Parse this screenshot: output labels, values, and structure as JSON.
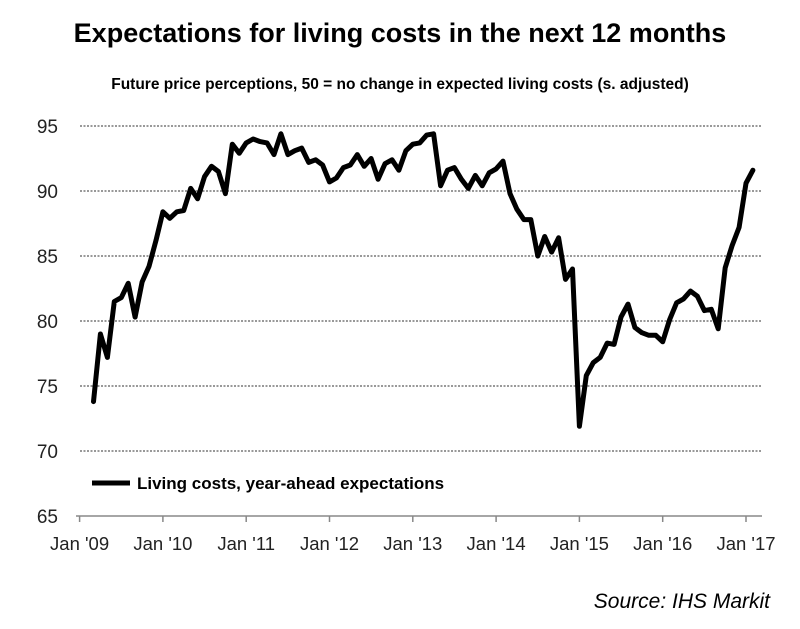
{
  "chart_data": {
    "type": "line",
    "title": "Expectations for living costs in the next 12 months",
    "subtitle": "Future price perceptions, 50 = no change in expected living costs (s. adjusted)",
    "source": "Source: IHS Markit",
    "xlabel": "",
    "ylabel": "",
    "ylim": [
      65,
      95
    ],
    "yticks": [
      65,
      70,
      75,
      80,
      85,
      90,
      95
    ],
    "xticks": [
      "Jan '09",
      "Jan '10",
      "Jan '11",
      "Jan '12",
      "Jan '13",
      "Jan '14",
      "Jan '15",
      "Jan '16",
      "Jan '17"
    ],
    "grid": true,
    "legend_position": "bottom-left",
    "start_month": "2009-03",
    "series": [
      {
        "name": "Living costs, year-ahead expectations",
        "color": "#000000",
        "values": [
          73.8,
          79.0,
          77.2,
          81.5,
          81.8,
          82.9,
          80.3,
          83.0,
          84.2,
          86.2,
          88.4,
          87.9,
          88.4,
          88.5,
          90.2,
          89.4,
          91.1,
          91.9,
          91.5,
          89.8,
          93.6,
          92.9,
          93.7,
          94.0,
          93.8,
          93.7,
          92.8,
          94.4,
          92.8,
          93.1,
          93.3,
          92.2,
          92.4,
          92.0,
          90.7,
          91.0,
          91.8,
          92.0,
          92.8,
          91.9,
          92.5,
          90.9,
          92.1,
          92.4,
          91.6,
          93.1,
          93.6,
          93.7,
          94.3,
          94.4,
          90.4,
          91.6,
          91.8,
          90.9,
          90.2,
          91.2,
          90.4,
          91.4,
          91.7,
          92.3,
          89.8,
          88.6,
          87.8,
          87.8,
          85.0,
          86.5,
          85.3,
          86.4,
          83.2,
          84.0,
          71.9,
          75.8,
          76.8,
          77.2,
          78.3,
          78.2,
          80.3,
          81.3,
          79.5,
          79.1,
          78.9,
          78.9,
          78.4,
          80.1,
          81.4,
          81.7,
          82.3,
          81.9,
          80.8,
          80.9,
          79.4,
          84.1,
          85.8,
          87.2,
          90.6,
          91.6
        ]
      }
    ]
  }
}
